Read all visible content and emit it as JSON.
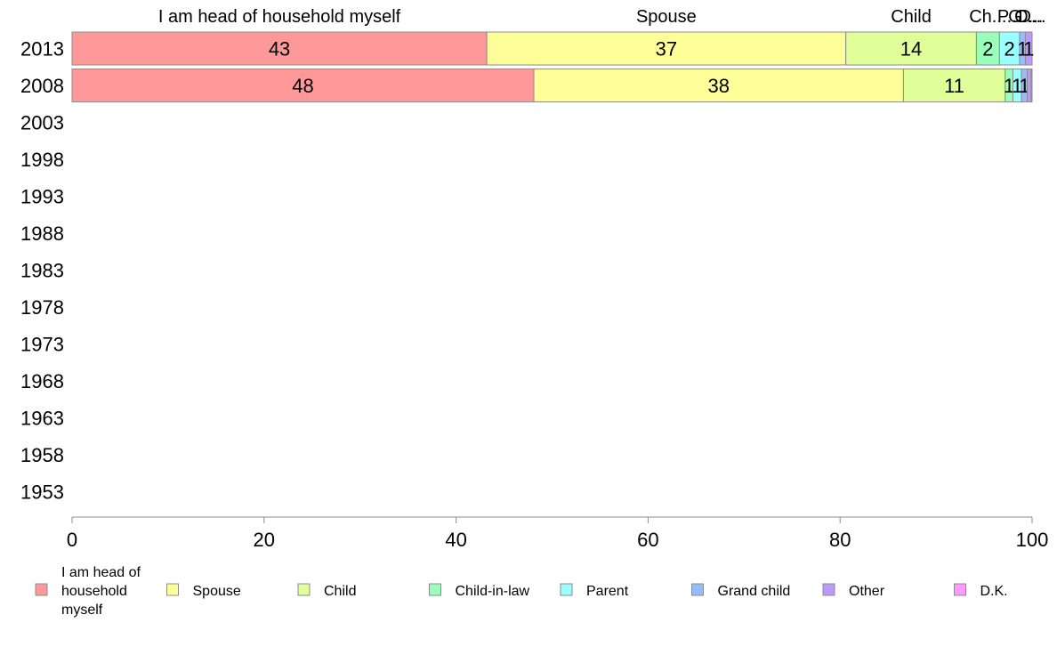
{
  "chart_data": {
    "type": "bar",
    "orientation": "horizontal",
    "stacked": true,
    "categories": [
      "2013",
      "2008",
      "2003",
      "1998",
      "1993",
      "1988",
      "1983",
      "1978",
      "1973",
      "1968",
      "1963",
      "1958",
      "1953"
    ],
    "series": [
      {
        "name": "I am head of household myself",
        "legend_lines": [
          "I am head of",
          "household",
          "myself"
        ],
        "short": "I am head of household myself",
        "color": "#ff9999",
        "values": [
          43.2,
          48.1,
          null,
          null,
          null,
          null,
          null,
          null,
          null,
          null,
          null,
          null,
          null
        ],
        "labels": [
          "43",
          "48"
        ]
      },
      {
        "name": "Spouse",
        "legend_lines": [
          "Spouse"
        ],
        "short": "Spouse",
        "color": "#ffff99",
        "values": [
          37.4,
          38.5,
          null,
          null,
          null,
          null,
          null,
          null,
          null,
          null,
          null,
          null,
          null
        ],
        "labels": [
          "37",
          "38"
        ]
      },
      {
        "name": "Child",
        "legend_lines": [
          "Child"
        ],
        "short": "Child",
        "color": "#e0ff99",
        "values": [
          13.6,
          10.6,
          null,
          null,
          null,
          null,
          null,
          null,
          null,
          null,
          null,
          null,
          null
        ],
        "labels": [
          "14",
          "11"
        ]
      },
      {
        "name": "Child-in-law",
        "legend_lines": [
          "Child-in-law"
        ],
        "short": "Ch...",
        "color": "#99ffbb",
        "values": [
          2.4,
          0.8,
          null,
          null,
          null,
          null,
          null,
          null,
          null,
          null,
          null,
          null,
          null
        ],
        "labels": [
          "2",
          "1"
        ]
      },
      {
        "name": "Parent",
        "legend_lines": [
          "Parent"
        ],
        "short": "P...",
        "color": "#99ffff",
        "values": [
          2.1,
          0.9,
          null,
          null,
          null,
          null,
          null,
          null,
          null,
          null,
          null,
          null,
          null
        ],
        "labels": [
          "2",
          "1"
        ]
      },
      {
        "name": "Grand child",
        "legend_lines": [
          "Grand child"
        ],
        "short": "G...",
        "color": "#99bbff",
        "values": [
          0.6,
          0.6,
          null,
          null,
          null,
          null,
          null,
          null,
          null,
          null,
          null,
          null,
          null
        ],
        "labels": [
          "1",
          "1"
        ]
      },
      {
        "name": "Other",
        "legend_lines": [
          "Other"
        ],
        "short": "O...",
        "color": "#bb99ff",
        "values": [
          0.7,
          0.4,
          null,
          null,
          null,
          null,
          null,
          null,
          null,
          null,
          null,
          null,
          null
        ],
        "labels": [
          "1",
          ""
        ]
      },
      {
        "name": "D.K.",
        "legend_lines": [
          "D.K."
        ],
        "short": "D...",
        "color": "#ff99ff",
        "values": [
          0.0,
          0.1,
          null,
          null,
          null,
          null,
          null,
          null,
          null,
          null,
          null,
          null,
          null
        ],
        "labels": [
          "",
          ""
        ]
      }
    ],
    "top_labels": [
      {
        "series": 0,
        "text": "I am head of household myself"
      },
      {
        "series": 1,
        "text": "Spouse"
      },
      {
        "series": 2,
        "text": "Child"
      },
      {
        "series": 3,
        "text": "Ch..."
      },
      {
        "series": 4,
        "text": "P..."
      },
      {
        "series": 5,
        "text": "G..."
      },
      {
        "series": 6,
        "text": "O..."
      },
      {
        "series": 7,
        "text": "D..."
      }
    ],
    "xlim": [
      0,
      100
    ],
    "xticks": [
      0,
      20,
      40,
      60,
      80,
      100
    ],
    "title": "",
    "xlabel": "",
    "ylabel": "",
    "grid": false,
    "legend_position": "bottom"
  }
}
